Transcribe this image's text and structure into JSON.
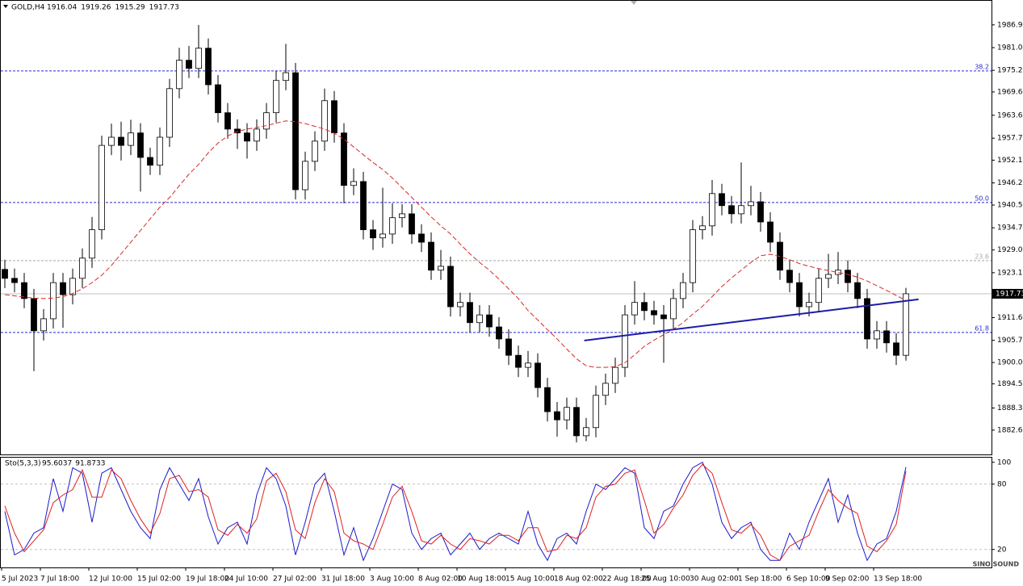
{
  "chart_data": [
    {
      "type": "candlestick",
      "title": "GOLD,H4",
      "quote": [
        1916.04,
        1919.26,
        1915.29,
        1917.73
      ],
      "categories": [
        "5 Jul 2023",
        null,
        null,
        null,
        "7 Jul 18:00",
        null,
        null,
        null,
        null,
        "12 Jul 10:00",
        null,
        null,
        null,
        null,
        "15 Jul 02:00",
        null,
        null,
        null,
        null,
        "19 Jul 18:00",
        null,
        null,
        null,
        "24 Jul 10:00",
        null,
        null,
        null,
        null,
        "27 Jul 02:00",
        null,
        null,
        null,
        null,
        "31 Jul 18:00",
        null,
        null,
        null,
        null,
        "3 Aug 10:00",
        null,
        null,
        null,
        null,
        "8 Aug 02:00",
        null,
        null,
        null,
        "10 Aug 18:00",
        null,
        null,
        null,
        null,
        "15 Aug 10:00",
        null,
        null,
        null,
        null,
        "18 Aug 02:00",
        null,
        null,
        null,
        null,
        "22 Aug 18:00",
        null,
        null,
        null,
        "25 Aug 10:00",
        null,
        null,
        null,
        null,
        "30 Aug 02:00",
        null,
        null,
        null,
        null,
        "1 Sep 18:00",
        null,
        null,
        null,
        null,
        "6 Sep 10:00",
        null,
        null,
        null,
        "9 Sep 02:00",
        null,
        null,
        null,
        null,
        "13 Sep 18:00",
        null,
        null,
        null
      ],
      "open": [
        1924.0,
        1921.7,
        1920.6,
        1916.5,
        1908.2,
        1911.3,
        1920.6,
        1917.5,
        1921.7,
        1926.9,
        1934.2,
        1955.9,
        1958.0,
        1955.9,
        1959.1,
        1952.8,
        1950.8,
        1958.0,
        1970.5,
        1977.8,
        1975.7,
        1980.9,
        1971.5,
        1964.3,
        1960.1,
        1959.1,
        1957.0,
        1960.1,
        1964.3,
        1972.6,
        1974.6,
        1944.5,
        1951.8,
        1957.0,
        1967.4,
        1959.1,
        1945.6,
        1946.6,
        1934.2,
        1932.1,
        1933.1,
        1937.3,
        1938.3,
        1933.1,
        1931.0,
        1923.8,
        1924.8,
        1914.4,
        1915.5,
        1910.3,
        1912.3,
        1909.2,
        1906.1,
        1901.9,
        1898.8,
        1899.9,
        1893.6,
        1887.4,
        1885.3,
        1888.5,
        1881.2,
        1883.3,
        1891.6,
        1894.7,
        1898.8,
        1912.3,
        1915.5,
        1913.4,
        1912.3,
        1911.3,
        1916.5,
        1920.6,
        1934.2,
        1935.2,
        1943.5,
        1940.4,
        1938.3,
        1940.4,
        1941.4,
        1936.2,
        1931.0,
        1923.8,
        1920.6,
        1914.4,
        1915.5,
        1921.7,
        1922.7,
        1923.8,
        1920.6,
        1916.5,
        1906.1,
        1908.2,
        1905.1,
        1901.9
      ],
      "high": [
        1926.5,
        1924.2,
        1923.1,
        1919.0,
        1913.8,
        1923.1,
        1923.1,
        1924.2,
        1929.4,
        1937.5,
        1958.4,
        1961.5,
        1962.0,
        1962.5,
        1961.6,
        1955.3,
        1960.5,
        1973.0,
        1981.0,
        1981.5,
        1986.9,
        1983.4,
        1974.0,
        1966.8,
        1962.6,
        1961.6,
        1962.6,
        1966.8,
        1975.1,
        1982.0,
        1977.1,
        1954.3,
        1959.5,
        1970.5,
        1969.9,
        1961.6,
        1950.0,
        1949.1,
        1936.7,
        1945.0,
        1941.0,
        1940.8,
        1940.8,
        1935.6,
        1933.5,
        1929.0,
        1927.3,
        1918.0,
        1918.0,
        1914.8,
        1914.8,
        1911.7,
        1908.6,
        1904.4,
        1903.0,
        1902.4,
        1896.1,
        1889.9,
        1891.0,
        1891.0,
        1885.8,
        1894.1,
        1897.2,
        1901.3,
        1914.8,
        1921.0,
        1918.0,
        1915.9,
        1914.8,
        1919.0,
        1923.1,
        1936.7,
        1937.7,
        1947.0,
        1946.0,
        1942.9,
        1951.5,
        1945.5,
        1943.9,
        1938.7,
        1933.5,
        1926.3,
        1923.1,
        1918.0,
        1924.2,
        1928.0,
        1928.5,
        1926.3,
        1923.1,
        1919.0,
        1910.7,
        1910.7,
        1907.6,
        1919.26
      ],
      "low": [
        1919.2,
        1918.1,
        1914.0,
        1897.8,
        1905.7,
        1908.8,
        1909.0,
        1915.0,
        1919.2,
        1924.4,
        1931.7,
        1953.4,
        1952.0,
        1953.4,
        1944.0,
        1948.3,
        1948.3,
        1955.5,
        1968.0,
        1973.2,
        1973.2,
        1969.0,
        1961.8,
        1957.6,
        1955.0,
        1952.5,
        1954.5,
        1957.6,
        1961.8,
        1970.1,
        1942.0,
        1942.0,
        1949.3,
        1954.5,
        1956.6,
        1941.0,
        1943.1,
        1931.7,
        1929.0,
        1929.6,
        1930.6,
        1934.8,
        1930.6,
        1928.5,
        1921.3,
        1921.3,
        1911.9,
        1911.9,
        1907.8,
        1907.8,
        1906.7,
        1903.6,
        1899.4,
        1896.3,
        1896.3,
        1891.1,
        1884.9,
        1881.0,
        1882.8,
        1879.5,
        1879.8,
        1880.8,
        1889.1,
        1892.2,
        1896.3,
        1909.8,
        1910.9,
        1909.8,
        1900.0,
        1908.8,
        1914.0,
        1918.1,
        1931.7,
        1932.7,
        1937.9,
        1935.8,
        1935.8,
        1937.9,
        1933.7,
        1928.5,
        1921.3,
        1918.1,
        1911.9,
        1911.9,
        1913.0,
        1919.2,
        1920.2,
        1918.1,
        1914.0,
        1903.6,
        1903.6,
        1902.6,
        1899.4,
        1900.5
      ],
      "close": [
        1921.7,
        1920.6,
        1916.5,
        1908.2,
        1911.3,
        1920.6,
        1917.5,
        1921.7,
        1926.9,
        1934.2,
        1955.9,
        1958.0,
        1955.9,
        1959.1,
        1952.8,
        1950.8,
        1958.0,
        1970.5,
        1977.8,
        1975.7,
        1980.9,
        1971.5,
        1964.3,
        1960.1,
        1959.1,
        1957.0,
        1960.1,
        1964.3,
        1972.6,
        1974.6,
        1944.5,
        1951.8,
        1957.0,
        1967.4,
        1959.1,
        1945.6,
        1946.6,
        1934.2,
        1932.1,
        1933.1,
        1937.3,
        1938.3,
        1933.1,
        1931.0,
        1923.8,
        1924.8,
        1914.4,
        1915.5,
        1910.3,
        1912.3,
        1909.2,
        1906.1,
        1901.9,
        1898.8,
        1899.9,
        1893.6,
        1887.4,
        1885.3,
        1888.5,
        1881.2,
        1883.3,
        1891.6,
        1894.7,
        1898.8,
        1912.3,
        1915.5,
        1913.4,
        1912.3,
        1911.3,
        1916.5,
        1920.6,
        1934.2,
        1935.2,
        1943.5,
        1940.4,
        1938.3,
        1940.4,
        1941.4,
        1936.2,
        1931.0,
        1923.8,
        1920.6,
        1914.4,
        1915.5,
        1921.7,
        1922.7,
        1923.8,
        1920.6,
        1916.5,
        1906.1,
        1908.2,
        1905.1,
        1901.9,
        1917.73
      ],
      "ma": {
        "color": "#d42a2a",
        "values": [
          1917.5,
          1917.2,
          1916.9,
          1916.6,
          1916.5,
          1916.6,
          1917.0,
          1917.8,
          1919.0,
          1920.6,
          1922.5,
          1925.0,
          1928.0,
          1931.0,
          1934.0,
          1937.0,
          1940.0,
          1942.5,
          1945.5,
          1948.5,
          1951.0,
          1954.0,
          1956.5,
          1958.3,
          1959.5,
          1960.1,
          1960.5,
          1961.0,
          1961.6,
          1962.2,
          1962.0,
          1961.5,
          1960.8,
          1960.1,
          1959.0,
          1957.5,
          1955.5,
          1953.5,
          1951.5,
          1949.7,
          1947.5,
          1945.0,
          1942.5,
          1940.0,
          1937.5,
          1935.2,
          1933.1,
          1930.5,
          1928.0,
          1925.8,
          1923.8,
          1921.5,
          1919.0,
          1916.5,
          1913.4,
          1911.0,
          1908.5,
          1906.1,
          1903.5,
          1901.0,
          1899.2,
          1898.8,
          1898.8,
          1899.0,
          1900.0,
          1902.0,
          1904.2,
          1905.8,
          1907.2,
          1908.6,
          1910.3,
          1912.5,
          1914.5,
          1917.0,
          1919.6,
          1921.8,
          1923.8,
          1925.8,
          1927.5,
          1927.9,
          1927.3,
          1926.5,
          1925.5,
          1924.8,
          1924.2,
          1923.7,
          1923.2,
          1922.7,
          1922.0,
          1921.0,
          1919.8,
          1918.6,
          1917.3,
          1916.0
        ]
      },
      "trendline": {
        "color": "#1c1ca8",
        "x": [
          59.8,
          94.3
        ],
        "y": [
          1905.7,
          1916.3
        ]
      },
      "fib_levels": [
        {
          "label": "38.2",
          "value": 1975.06,
          "color": "#2a2ad0"
        },
        {
          "label": "50.0",
          "value": 1941.2,
          "color": "#2a2ad0"
        },
        {
          "label": "23.6",
          "value": 1926.26,
          "color": "#a8a8a8"
        },
        {
          "label": "61.8",
          "value": 1907.77,
          "color": "#2a2ad0"
        }
      ],
      "current_price": 1917.73,
      "bull_color": "#ffffff",
      "bear_color": "#000000",
      "ylim": [
        1876.4,
        1993.3
      ],
      "yticks": [
        {
          "value": 1986.9,
          "label": "1986.90"
        },
        1981.05,
        {
          "value": 1975.2,
          "label": "1975.20"
        },
        1969.65,
        1963.65,
        1957.75,
        {
          "value": 1952.1,
          "label": "1952.10"
        },
        1946.25,
        1940.55,
        {
          "value": 1934.7,
          "label": "1934.70"
        },
        {
          "value": 1929,
          "label": "1929.00"
        },
        1923.15,
        {
          "value": 1911.6,
          "label": "1911.60"
        },
        1905.75,
        1900.05,
        1894.55,
        1888.35,
        1882.65
      ],
      "watermark": "SINO SOUND"
    },
    {
      "type": "line",
      "title": "Sto(5,3,3)",
      "readout": [
        95.6037,
        91.8733
      ],
      "series": [
        {
          "color": "#1a1acc",
          "values": [
            55,
            15,
            20,
            35,
            40,
            85,
            55,
            95,
            90,
            45,
            90,
            95,
            75,
            55,
            40,
            30,
            75,
            95,
            80,
            65,
            85,
            50,
            25,
            40,
            45,
            25,
            70,
            95,
            85,
            60,
            15,
            45,
            80,
            90,
            55,
            15,
            40,
            10,
            30,
            55,
            80,
            75,
            35,
            20,
            30,
            35,
            15,
            25,
            35,
            20,
            30,
            35,
            30,
            25,
            55,
            25,
            10,
            30,
            35,
            25,
            55,
            80,
            75,
            85,
            95,
            90,
            40,
            30,
            55,
            60,
            80,
            95,
            100,
            80,
            45,
            30,
            40,
            45,
            20,
            10,
            10,
            35,
            20,
            45,
            65,
            85,
            45,
            70,
            35,
            10,
            25,
            30,
            55,
            95.6037
          ]
        },
        {
          "color": "#e02020",
          "values": [
            60,
            35,
            18,
            28,
            38,
            63,
            70,
            75,
            93,
            68,
            68,
            93,
            85,
            65,
            48,
            35,
            53,
            85,
            88,
            73,
            75,
            68,
            38,
            33,
            43,
            35,
            48,
            83,
            90,
            73,
            38,
            30,
            63,
            85,
            73,
            35,
            28,
            25,
            20,
            43,
            68,
            78,
            55,
            28,
            25,
            33,
            25,
            20,
            30,
            28,
            25,
            33,
            33,
            28,
            40,
            40,
            18,
            20,
            33,
            30,
            40,
            68,
            78,
            80,
            90,
            93,
            65,
            35,
            43,
            58,
            70,
            88,
            98,
            90,
            63,
            38,
            35,
            43,
            33,
            15,
            10,
            23,
            28,
            33,
            55,
            75,
            65,
            58,
            53,
            23,
            18,
            28,
            43,
            91.8733
          ]
        }
      ],
      "ylim": [
        5,
        105
      ],
      "yticks": [
        20,
        80,
        100
      ],
      "levels": [
        20,
        80
      ]
    }
  ]
}
